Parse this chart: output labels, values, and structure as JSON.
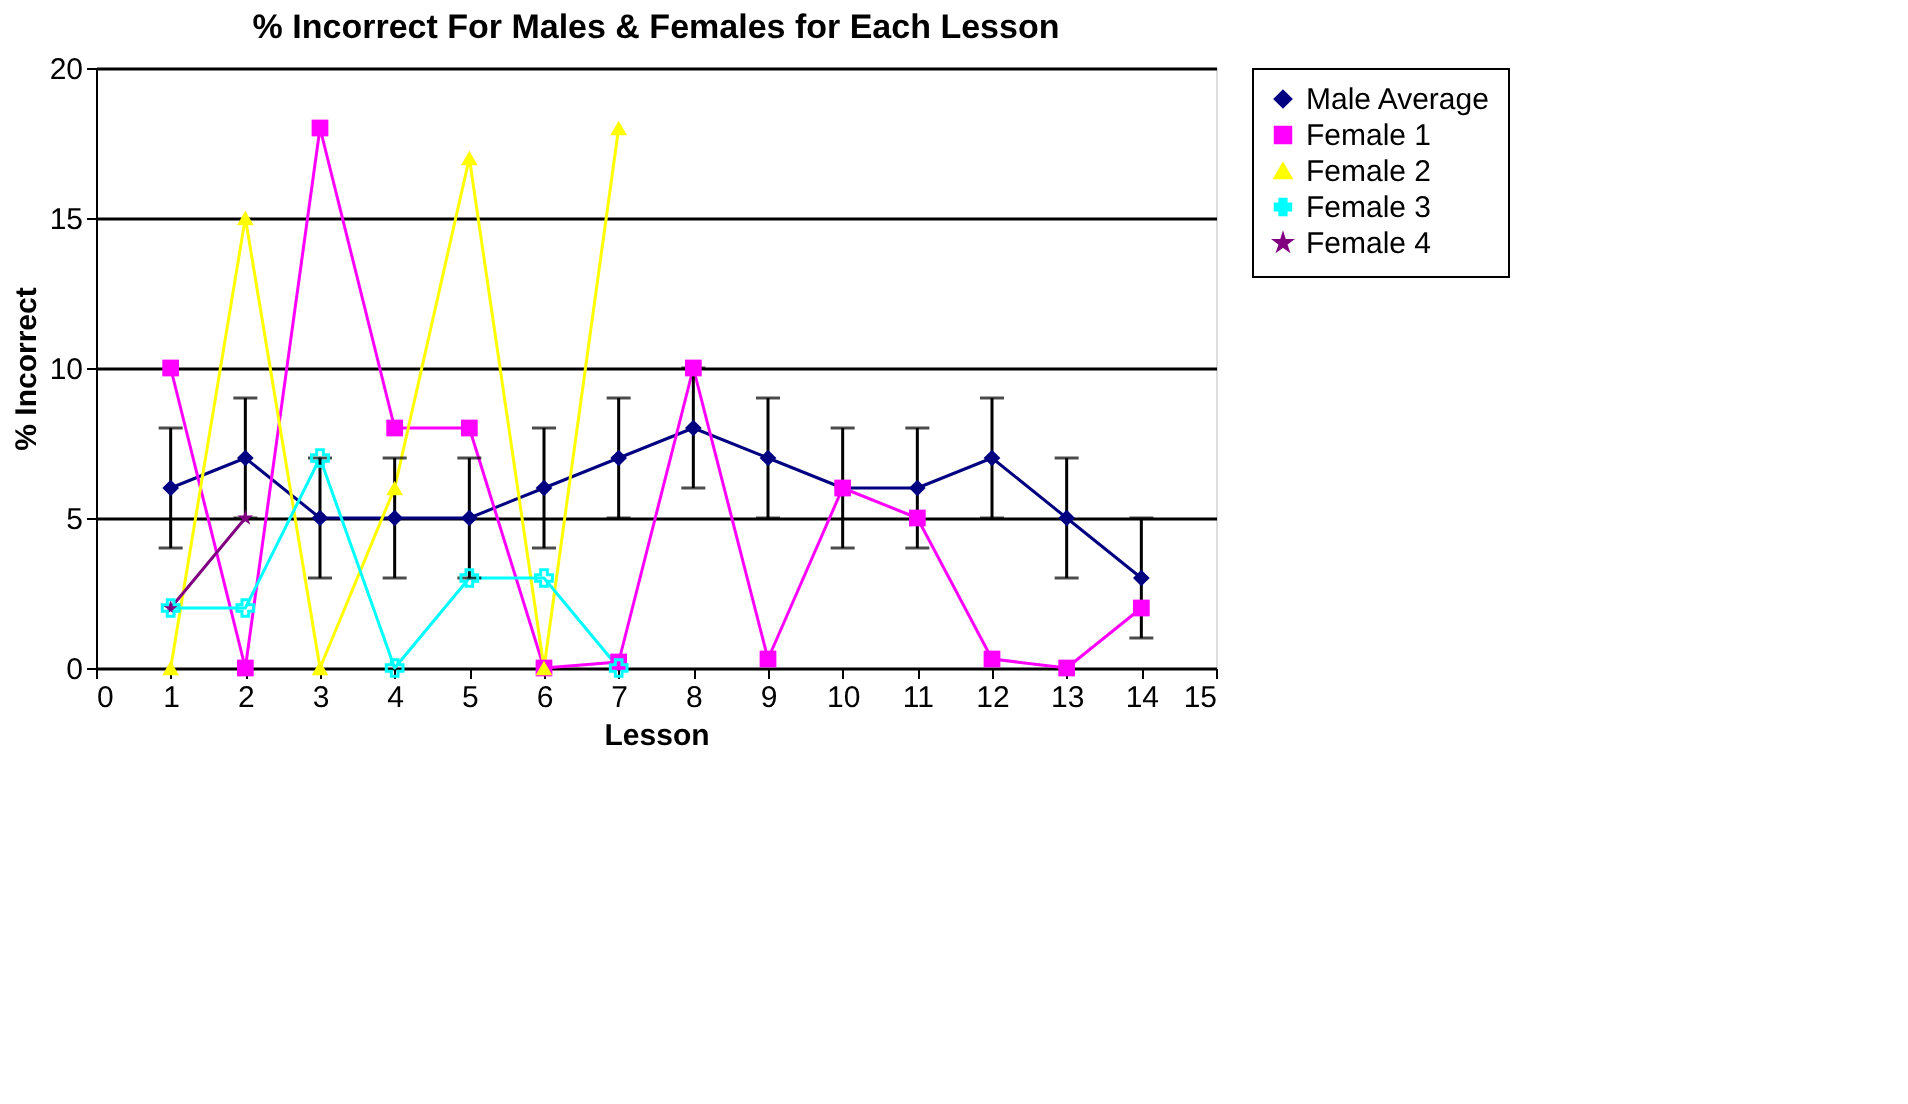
{
  "chart_data": {
    "type": "line",
    "title": "% Incorrect For Males & Females for Each Lesson",
    "xlabel": "Lesson",
    "ylabel": "% Incorrect",
    "xlim": [
      0,
      15
    ],
    "xticks": [
      0,
      1,
      2,
      3,
      4,
      5,
      6,
      7,
      8,
      9,
      10,
      11,
      12,
      13,
      14,
      15
    ],
    "ylim": [
      0,
      20
    ],
    "yticks": [
      0,
      5,
      10,
      15,
      20
    ],
    "grid": "y",
    "legend": "right",
    "series": [
      {
        "name": "Male Average",
        "color": "#000080",
        "marker": "diamond",
        "x": [
          1,
          2,
          3,
          4,
          5,
          6,
          7,
          8,
          9,
          10,
          11,
          12,
          13,
          14
        ],
        "values": [
          6,
          7,
          5,
          5,
          5,
          6,
          7,
          8,
          7,
          6,
          6,
          7,
          5,
          3
        ],
        "errors": [
          2,
          2,
          2,
          2,
          2,
          2,
          2,
          2,
          2,
          2,
          2,
          2,
          2,
          2
        ]
      },
      {
        "name": "Female 1",
        "color": "#ff00ff",
        "marker": "square",
        "x": [
          1,
          2,
          3,
          4,
          5,
          6,
          7,
          8,
          9,
          10,
          11,
          12,
          13,
          14
        ],
        "values": [
          10,
          0,
          18,
          8,
          8,
          0,
          0.2,
          10,
          0.3,
          6,
          5,
          0.3,
          0,
          2
        ]
      },
      {
        "name": "Female 2",
        "color": "#ffff00",
        "marker": "triangle",
        "x": [
          1,
          2,
          3,
          4,
          5,
          6,
          7
        ],
        "values": [
          0,
          15,
          0,
          6,
          17,
          0,
          18
        ]
      },
      {
        "name": "Female 3",
        "color": "#00ffff",
        "marker": "cross",
        "x": [
          1,
          2,
          3,
          4,
          5,
          6,
          7
        ],
        "values": [
          2,
          2,
          7,
          0,
          3,
          3,
          0
        ]
      },
      {
        "name": "Female 4",
        "color": "#800080",
        "marker": "star",
        "x": [
          1,
          2
        ],
        "values": [
          2,
          5
        ]
      }
    ]
  }
}
